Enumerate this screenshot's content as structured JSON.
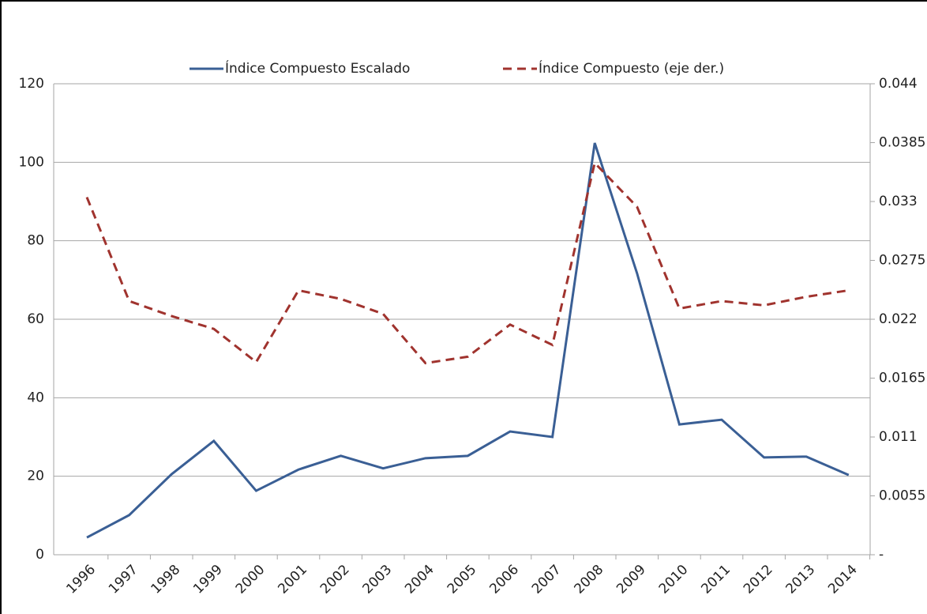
{
  "chart_data": {
    "type": "line",
    "categories": [
      "1996",
      "1997",
      "1998",
      "1999",
      "2000",
      "2001",
      "2002",
      "2003",
      "2004",
      "2005",
      "2006",
      "2007",
      "2008",
      "2009",
      "2010",
      "2011",
      "2012",
      "2013",
      "2014"
    ],
    "series": [
      {
        "name": "Índice Compuesto Escalado",
        "color": "#3a5f95",
        "dashed": false,
        "values": [
          4.4,
          10.1,
          20.5,
          29,
          16.3,
          21.7,
          25.2,
          22,
          24.6,
          25.2,
          31.4,
          30,
          104.9,
          71.7,
          33.2,
          34.4,
          24.8,
          25,
          20.3
        ]
      },
      {
        "name": "Índice Compuesto (eje der.)",
        "color": "#a0332e",
        "dashed": true,
        "axis": "y2",
        "values": [
          0.0334,
          0.0237,
          0.0223,
          0.0211,
          0.018,
          0.0247,
          0.0239,
          0.0225,
          0.0179,
          0.0185,
          0.0215,
          0.0196,
          0.0366,
          0.0325,
          0.023,
          0.0237,
          0.0233,
          0.0241,
          0.0247
        ]
      }
    ],
    "ylim": [
      0,
      120
    ],
    "yticks": [
      0,
      20,
      40,
      60,
      80,
      100,
      120
    ],
    "y2lim": [
      0,
      0.044
    ],
    "y2ticks": [
      {
        "value": 0,
        "label": "-"
      },
      0.0055,
      0.011,
      0.0165,
      0.022,
      0.0275,
      0.033,
      0.0385,
      0.044
    ],
    "grid": true,
    "legend": "top"
  }
}
